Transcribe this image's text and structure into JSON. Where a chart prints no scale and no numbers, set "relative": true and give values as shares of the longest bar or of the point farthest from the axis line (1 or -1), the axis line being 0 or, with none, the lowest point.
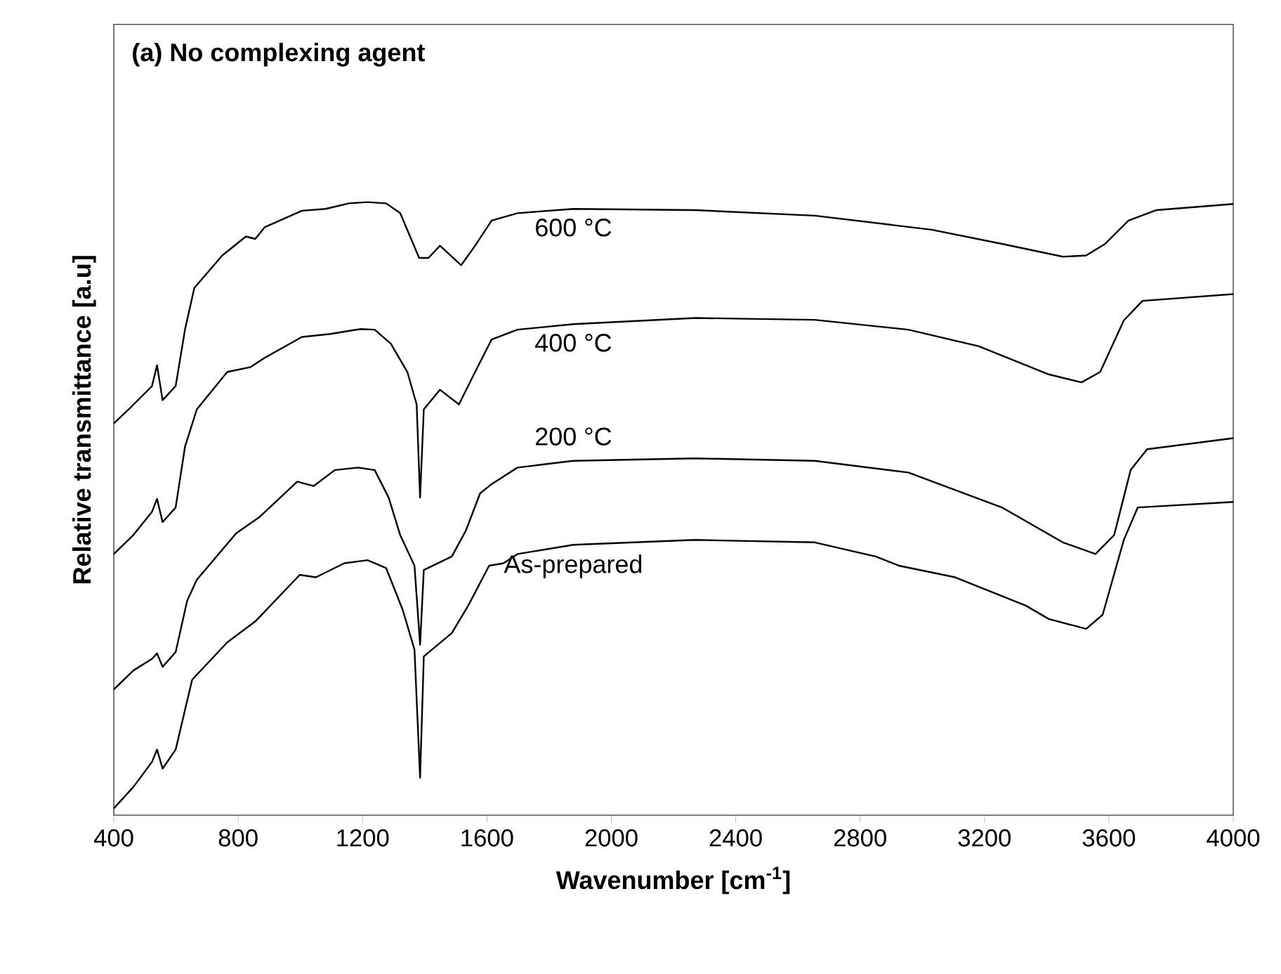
{
  "chart_data": {
    "type": "line",
    "title": "(a) No complexing agent",
    "xlabel": "Wavenumber [cm$^{-1}$]",
    "ylabel": "Relative transmittance [a.u]",
    "relative": true,
    "xlim": [
      400,
      4000
    ],
    "xticks": [
      400,
      800,
      1200,
      1600,
      2000,
      2400,
      2800,
      3200,
      3600,
      4000
    ],
    "grid": false,
    "marker": "none",
    "line_style": "solid",
    "series": [
      {
        "name": "600 °C",
        "color": "#000000",
        "x": [
          400,
          448,
          523,
          539,
          557,
          599,
          629,
          659,
          749,
          825,
          855,
          885,
          1005,
          1081,
          1156,
          1216,
          1276,
          1321,
          1382,
          1412,
          1449,
          1517,
          1562,
          1615,
          1698,
          1878,
          2270,
          2654,
          3030,
          3256,
          3452,
          3527,
          3588,
          3663,
          3753,
          4000
        ],
        "values": [
          0.639,
          0.662,
          0.7,
          0.734,
          0.677,
          0.7,
          0.792,
          0.86,
          0.913,
          0.944,
          0.94,
          0.959,
          0.986,
          0.989,
          0.998,
          1.0,
          0.998,
          0.982,
          0.909,
          0.909,
          0.929,
          0.897,
          0.929,
          0.97,
          0.982,
          0.989,
          0.987,
          0.978,
          0.955,
          0.932,
          0.911,
          0.913,
          0.932,
          0.97,
          0.987,
          0.997
        ]
      },
      {
        "name": "400 °C",
        "color": "#000000",
        "x": [
          400,
          463,
          523,
          539,
          557,
          599,
          629,
          667,
          765,
          840,
          885,
          1005,
          1096,
          1194,
          1239,
          1291,
          1344,
          1374,
          1385,
          1397,
          1449,
          1510,
          1562,
          1615,
          1698,
          1878,
          2270,
          2654,
          2955,
          3181,
          3407,
          3512,
          3572,
          3648,
          3708,
          4000
        ],
        "values": [
          0.426,
          0.457,
          0.495,
          0.516,
          0.478,
          0.502,
          0.601,
          0.662,
          0.723,
          0.731,
          0.746,
          0.78,
          0.785,
          0.793,
          0.792,
          0.769,
          0.723,
          0.67,
          0.518,
          0.662,
          0.694,
          0.67,
          0.723,
          0.776,
          0.792,
          0.801,
          0.811,
          0.808,
          0.792,
          0.765,
          0.719,
          0.706,
          0.723,
          0.807,
          0.839,
          0.85
        ]
      },
      {
        "name": "200 °C",
        "color": "#000000",
        "x": [
          400,
          463,
          523,
          539,
          557,
          599,
          636,
          667,
          794,
          870,
          990,
          1043,
          1111,
          1186,
          1239,
          1284,
          1321,
          1367,
          1385,
          1397,
          1487,
          1532,
          1578,
          1615,
          1698,
          1878,
          2270,
          2654,
          2955,
          3256,
          3452,
          3557,
          3617,
          3670,
          3723,
          4000
        ],
        "values": [
          0.205,
          0.236,
          0.255,
          0.264,
          0.242,
          0.266,
          0.35,
          0.384,
          0.46,
          0.487,
          0.544,
          0.537,
          0.563,
          0.567,
          0.563,
          0.518,
          0.457,
          0.407,
          0.278,
          0.4,
          0.422,
          0.464,
          0.525,
          0.54,
          0.567,
          0.578,
          0.582,
          0.578,
          0.559,
          0.502,
          0.445,
          0.426,
          0.457,
          0.563,
          0.597,
          0.615
        ]
      },
      {
        "name": "As-prepared",
        "color": "#000000",
        "x": [
          400,
          463,
          523,
          539,
          557,
          599,
          652,
          765,
          855,
          998,
          1050,
          1141,
          1216,
          1276,
          1329,
          1367,
          1385,
          1397,
          1487,
          1540,
          1607,
          1653,
          1698,
          1878,
          2270,
          2654,
          2850,
          2925,
          3106,
          3332,
          3407,
          3527,
          3580,
          3648,
          3693,
          4000
        ],
        "values": [
          0.011,
          0.046,
          0.087,
          0.107,
          0.076,
          0.107,
          0.221,
          0.282,
          0.316,
          0.392,
          0.388,
          0.411,
          0.416,
          0.403,
          0.335,
          0.27,
          0.061,
          0.259,
          0.297,
          0.342,
          0.407,
          0.411,
          0.426,
          0.441,
          0.449,
          0.445,
          0.422,
          0.407,
          0.388,
          0.342,
          0.32,
          0.304,
          0.327,
          0.449,
          0.502,
          0.511
        ]
      }
    ]
  }
}
